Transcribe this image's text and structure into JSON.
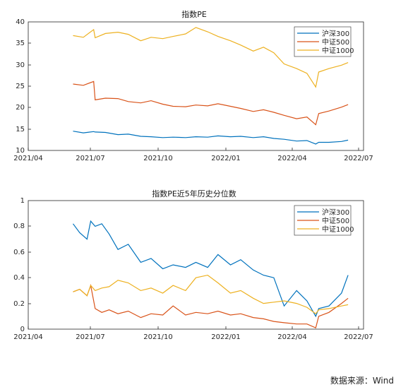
{
  "source": "数据来源：Wind",
  "chart_data": [
    {
      "type": "line",
      "title": "指数PE",
      "xlabel": "",
      "ylabel": "",
      "x_ticks": [
        "2021/04",
        "2021/07",
        "2021/10",
        "2022/01",
        "2022/04",
        "2022/07"
      ],
      "xlim": [
        "2021-04-01",
        "2022-07-01"
      ],
      "ylim": [
        10,
        40
      ],
      "y_ticks": [
        "10",
        "15",
        "20",
        "25",
        "30",
        "35",
        "40"
      ],
      "grid": false,
      "legend_position": "top-right",
      "x": [
        "2021-06-01",
        "2021-06-15",
        "2021-06-29",
        "2021-07-01",
        "2021-07-15",
        "2021-08-01",
        "2021-08-15",
        "2021-09-01",
        "2021-09-15",
        "2021-10-01",
        "2021-10-15",
        "2021-11-01",
        "2021-11-15",
        "2021-12-01",
        "2021-12-15",
        "2022-01-01",
        "2022-01-15",
        "2022-02-01",
        "2022-02-15",
        "2022-03-01",
        "2022-03-15",
        "2022-04-01",
        "2022-04-15",
        "2022-04-27",
        "2022-05-01",
        "2022-05-15",
        "2022-06-01",
        "2022-06-10"
      ],
      "series": [
        {
          "name": "沪深300",
          "color": "#0072BD",
          "values": [
            14.5,
            14.1,
            14.4,
            14.3,
            14.2,
            13.7,
            13.8,
            13.3,
            13.2,
            13.0,
            13.1,
            13.0,
            13.2,
            13.1,
            13.4,
            13.2,
            13.3,
            13.0,
            13.2,
            12.8,
            12.6,
            12.2,
            12.3,
            11.5,
            11.9,
            11.9,
            12.1,
            12.4
          ]
        },
        {
          "name": "中证500",
          "color": "#D95319",
          "values": [
            25.5,
            25.2,
            26.1,
            21.8,
            22.2,
            22.1,
            21.4,
            21.1,
            21.6,
            20.8,
            20.3,
            20.2,
            20.6,
            20.4,
            20.9,
            20.3,
            19.8,
            19.1,
            19.5,
            18.9,
            18.2,
            17.4,
            17.8,
            16.0,
            18.6,
            19.2,
            20.1,
            20.7
          ]
        },
        {
          "name": "中证1000",
          "color": "#EDB120",
          "values": [
            36.8,
            36.4,
            38.2,
            36.3,
            37.3,
            37.6,
            37.1,
            35.6,
            36.4,
            36.1,
            36.6,
            37.2,
            38.7,
            37.7,
            36.6,
            35.6,
            34.6,
            33.2,
            34.1,
            32.8,
            30.2,
            29.1,
            28.0,
            24.8,
            28.3,
            29.1,
            29.9,
            30.5
          ]
        }
      ]
    },
    {
      "type": "line",
      "title": "指数PE近5年历史分位数",
      "xlabel": "",
      "ylabel": "",
      "x_ticks": [
        "2021/04",
        "2021/07",
        "2021/10",
        "2022/01",
        "2022/04",
        "2022/07"
      ],
      "xlim": [
        "2021-04-01",
        "2022-07-01"
      ],
      "ylim": [
        0,
        1
      ],
      "y_ticks": [
        "0",
        "0.2",
        "0.4",
        "0.6",
        "0.8",
        "1"
      ],
      "grid": false,
      "legend_position": "top-right",
      "x": [
        "2021-06-01",
        "2021-06-10",
        "2021-06-20",
        "2021-06-25",
        "2021-07-01",
        "2021-07-10",
        "2021-07-20",
        "2021-08-01",
        "2021-08-15",
        "2021-09-01",
        "2021-09-15",
        "2021-10-01",
        "2021-10-15",
        "2021-11-01",
        "2021-11-15",
        "2021-12-01",
        "2021-12-15",
        "2022-01-01",
        "2022-01-15",
        "2022-02-01",
        "2022-02-15",
        "2022-03-01",
        "2022-03-15",
        "2022-04-01",
        "2022-04-15",
        "2022-04-27",
        "2022-05-01",
        "2022-05-15",
        "2022-06-01",
        "2022-06-10"
      ],
      "series": [
        {
          "name": "沪深300",
          "color": "#0072BD",
          "values": [
            0.82,
            0.75,
            0.7,
            0.84,
            0.8,
            0.82,
            0.74,
            0.62,
            0.66,
            0.52,
            0.55,
            0.47,
            0.5,
            0.48,
            0.52,
            0.48,
            0.58,
            0.5,
            0.54,
            0.46,
            0.42,
            0.4,
            0.18,
            0.3,
            0.22,
            0.1,
            0.16,
            0.18,
            0.28,
            0.42
          ]
        },
        {
          "name": "中证500",
          "color": "#D95319",
          "values": [
            0.29,
            0.31,
            0.26,
            0.34,
            0.16,
            0.13,
            0.15,
            0.12,
            0.14,
            0.09,
            0.12,
            0.11,
            0.18,
            0.11,
            0.13,
            0.12,
            0.14,
            0.11,
            0.12,
            0.09,
            0.08,
            0.06,
            0.05,
            0.04,
            0.04,
            0.01,
            0.1,
            0.13,
            0.2,
            0.24
          ]
        },
        {
          "name": "中证1000",
          "color": "#EDB120",
          "values": [
            0.29,
            0.31,
            0.26,
            0.34,
            0.3,
            0.32,
            0.33,
            0.38,
            0.36,
            0.3,
            0.32,
            0.28,
            0.34,
            0.3,
            0.4,
            0.42,
            0.36,
            0.28,
            0.3,
            0.24,
            0.2,
            0.21,
            0.22,
            0.2,
            0.17,
            0.12,
            0.15,
            0.16,
            0.18,
            0.19
          ]
        }
      ]
    }
  ]
}
